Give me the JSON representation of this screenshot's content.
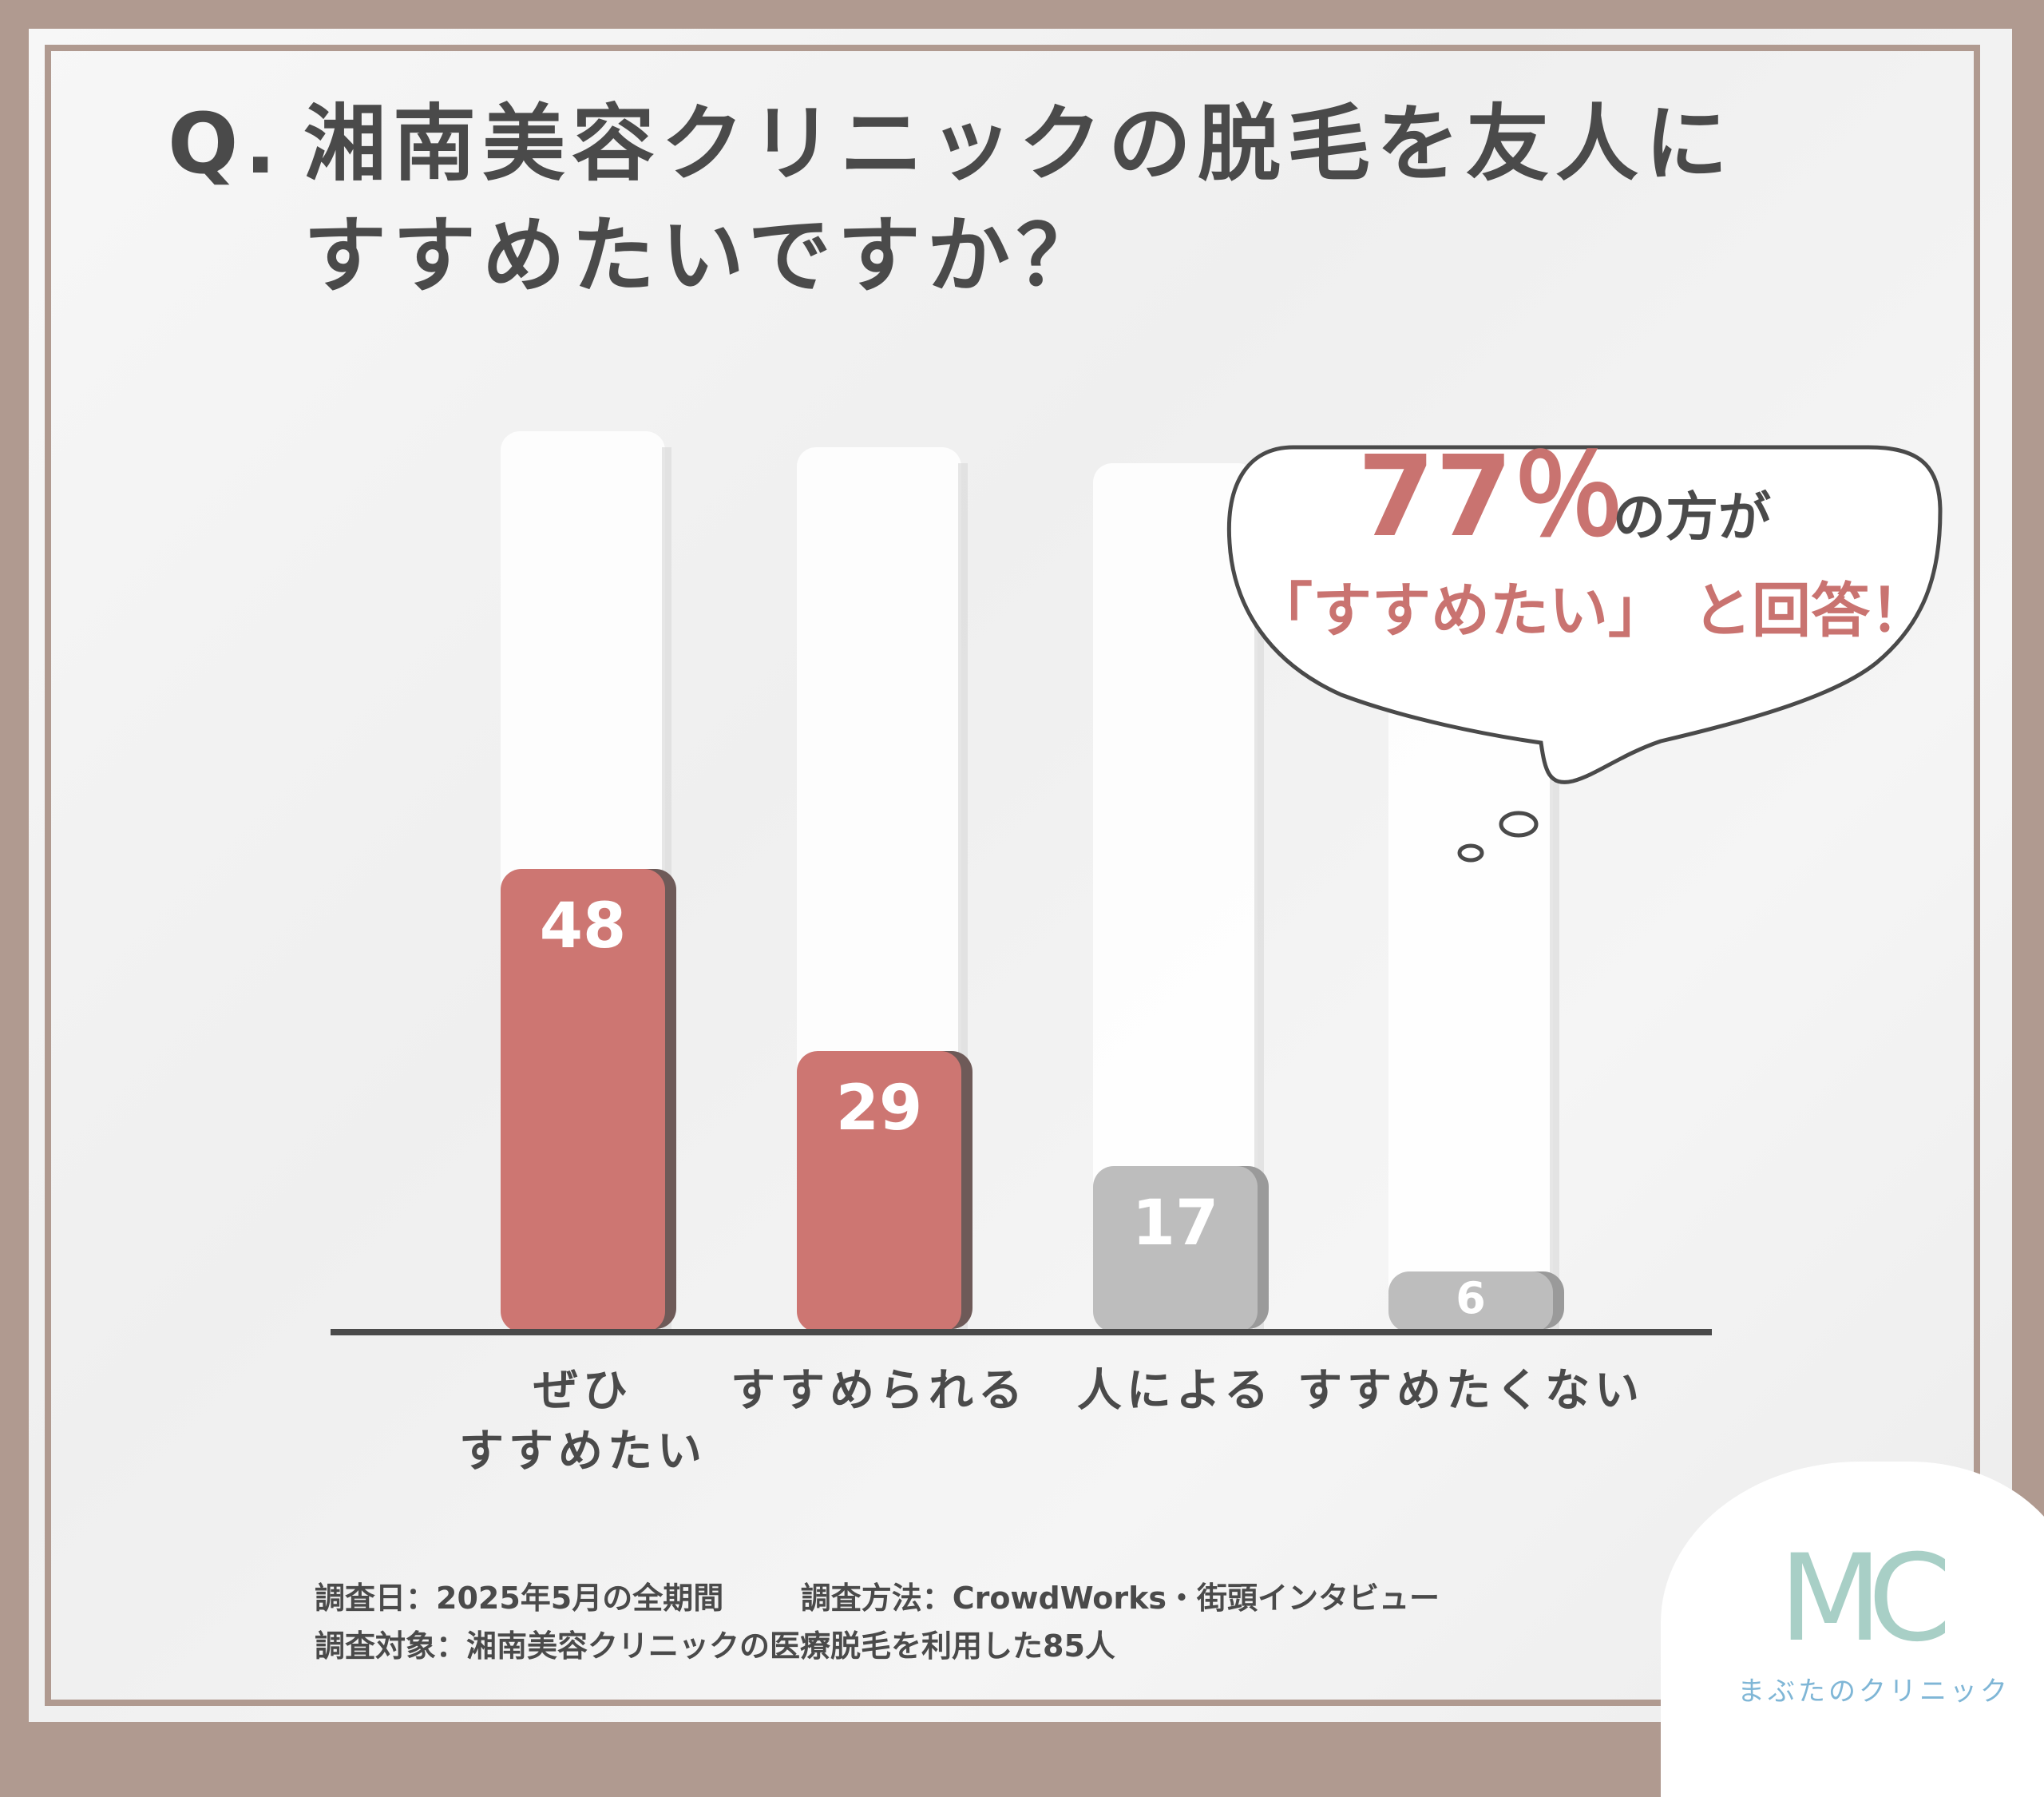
{
  "title": {
    "prefix": "Q.",
    "line1": "湘南美容クリニックの脱毛を友人に",
    "line2": "すすめたいですか？"
  },
  "bubble": {
    "percent": "77％",
    "line1_suffix": "の方が",
    "line2_accent": "「すすめたい」",
    "line2_suffix": "と回答！"
  },
  "chart_data": {
    "type": "bar",
    "categories": [
      "ぜひすすめたい",
      "すすめられる",
      "人による",
      "すすめたくない"
    ],
    "category_lines": [
      [
        "ぜひ",
        "すすめたい"
      ],
      [
        "すすめられる"
      ],
      [
        "人による"
      ],
      [
        "すすめたくない"
      ]
    ],
    "values": [
      48,
      29,
      17,
      6
    ],
    "data_labels": [
      "48",
      "29",
      "17",
      "6"
    ],
    "colors": [
      "#cd7672",
      "#cd7672",
      "#bdbdbd",
      "#bdbdbd"
    ],
    "title": "",
    "xlabel": "",
    "ylabel": "",
    "ylim": [
      0,
      100
    ],
    "grid": false,
    "legend": "none"
  },
  "footer": {
    "survey_date": "調査日：2025年5月の全期間",
    "survey_method": "調査方法：CrowdWorks・街頭インタビュー",
    "survey_target": "調査対象：湘南美容クリニックの医療脱毛を利用した85人"
  },
  "logo": {
    "mark": "MC",
    "name": "まぶたのクリニック"
  }
}
